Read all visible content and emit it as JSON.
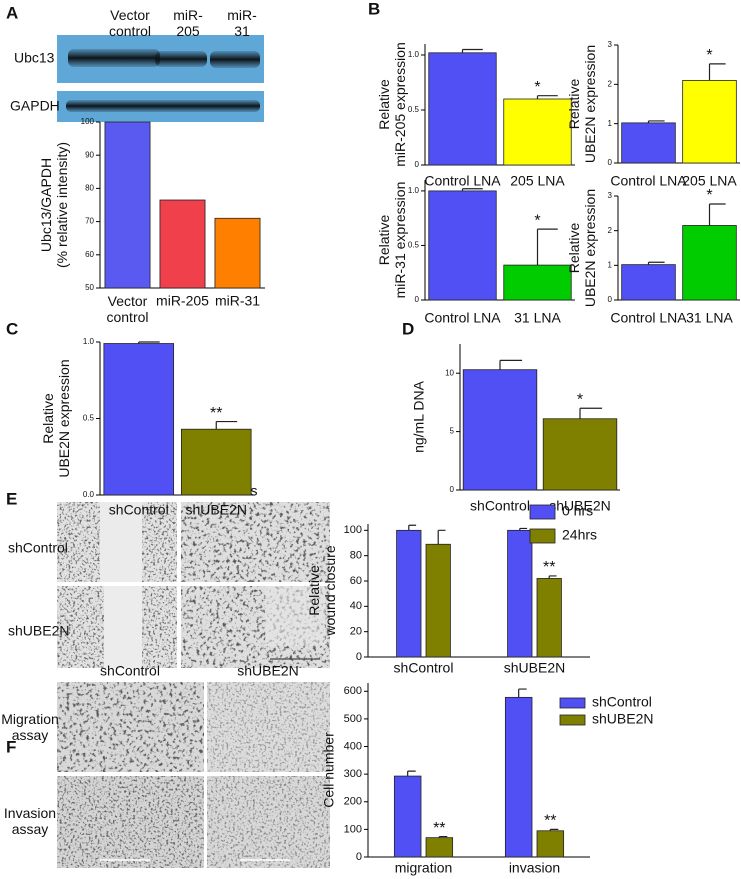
{
  "figure": {
    "panel_letters": [
      "A",
      "B",
      "C",
      "D",
      "E",
      "F"
    ],
    "blot": {
      "lanes": [
        "Vector\ncontrol",
        "miR-\n205",
        "miR-\n31"
      ],
      "rows": [
        "Ubc13",
        "GAPDH"
      ]
    },
    "wound": {
      "times": [
        "0hrs",
        "24hrs"
      ],
      "rows": [
        "shControl",
        "shUBE2N"
      ]
    },
    "transwell": {
      "columns": [
        "shControl",
        "shUBE2N"
      ],
      "rows": [
        "Migration\nassay",
        "Invasion\nassay"
      ]
    }
  },
  "chart_data": [
    {
      "type": "bar",
      "ylabel": "Ubc13/GAPDH\n(% relative intensity)",
      "categories": [
        "Vector\ncontrol",
        "miR-205",
        "miR-31"
      ],
      "values": [
        100,
        76.5,
        71
      ],
      "colors": [
        "#5a5af0",
        "#f0404c",
        "#ff8000"
      ],
      "ylim": [
        50,
        100
      ],
      "yticks": [
        50,
        60,
        70,
        80,
        90,
        100
      ]
    },
    {
      "type": "bar",
      "ylabel": "Relative\nmiR-205 expression",
      "categories": [
        "Control LNA",
        "205 LNA"
      ],
      "values": [
        1.02,
        0.6
      ],
      "errors": [
        0.03,
        0.03
      ],
      "significance": [
        null,
        "*"
      ],
      "colors": [
        "#5050f5",
        "#ffff00"
      ],
      "ylim": [
        0,
        1.1
      ],
      "yticks": [
        0,
        0.5,
        {
          "value": 1,
          "label": "1.0"
        }
      ]
    },
    {
      "type": "bar",
      "ylabel": "Relative\nUBE2N expression",
      "categories": [
        "Control LNA",
        "205 LNA"
      ],
      "values": [
        1.02,
        2.1
      ],
      "errors": [
        0.05,
        0.42
      ],
      "significance": [
        null,
        "*"
      ],
      "colors": [
        "#5050f5",
        "#ffff00"
      ],
      "ylim": [
        0,
        3
      ],
      "yticks": [
        0,
        1,
        2,
        3
      ]
    },
    {
      "type": "bar",
      "ylabel": "Relative\nmiR-31 expression",
      "categories": [
        "Control LNA",
        "31 LNA"
      ],
      "values": [
        1.0,
        0.32
      ],
      "errors": [
        0.02,
        0.33
      ],
      "significance": [
        null,
        "*"
      ],
      "colors": [
        "#5050f5",
        "#00cc00"
      ],
      "ylim": [
        0,
        1.1
      ],
      "yticks": [
        0,
        0.5,
        {
          "value": 1,
          "label": "1.0"
        }
      ]
    },
    {
      "type": "bar",
      "ylabel": "Relative\nUBE2N expression",
      "categories": [
        "Control LNA",
        "31 LNA"
      ],
      "values": [
        1.02,
        2.15
      ],
      "errors": [
        0.07,
        0.62
      ],
      "significance": [
        null,
        "*"
      ],
      "colors": [
        "#5050f5",
        "#00cc00"
      ],
      "ylim": [
        0,
        3
      ],
      "yticks": [
        0,
        1,
        2,
        3
      ]
    },
    {
      "type": "bar",
      "ylabel": "Relative\nUBE2N expression",
      "categories": [
        "shControl",
        "shUBE2N"
      ],
      "values": [
        0.99,
        0.43
      ],
      "errors": [
        0.01,
        0.05
      ],
      "significance": [
        null,
        "**"
      ],
      "colors": [
        "#5050f5",
        "#808000"
      ],
      "ylim": [
        0,
        1
      ],
      "yticks": [
        {
          "value": 0,
          "label": "0.0"
        },
        0.5,
        {
          "value": 1,
          "label": "1.0"
        }
      ]
    },
    {
      "type": "bar",
      "ylabel": "ng/mL DNA",
      "categories": [
        "shControl",
        "shUBE2N"
      ],
      "values": [
        10.3,
        6.1
      ],
      "errors": [
        0.8,
        0.9
      ],
      "significance": [
        null,
        "*"
      ],
      "colors": [
        "#5050f5",
        "#808000"
      ],
      "ylim": [
        0,
        12.5
      ],
      "yticks": [
        0,
        5,
        10
      ]
    },
    {
      "type": "grouped_bar",
      "ylabel": "Relative\nwound closure",
      "categories": [
        "shControl",
        "shUBE2N"
      ],
      "series": [
        {
          "name": "0 hrs",
          "color": "#5050f5",
          "values": [
            100,
            100
          ],
          "errors": [
            4,
            1.5
          ],
          "significance": [
            null,
            null
          ]
        },
        {
          "name": "24hrs",
          "color": "#808000",
          "values": [
            89,
            62
          ],
          "errors": [
            11,
            2
          ],
          "significance": [
            null,
            "**"
          ]
        }
      ],
      "ylim": [
        0,
        105
      ],
      "yticks": [
        0,
        20,
        40,
        60,
        80,
        100
      ]
    },
    {
      "type": "grouped_bar",
      "ylabel": "Cell number",
      "categories": [
        "migration",
        "invasion"
      ],
      "series": [
        {
          "name": "shControl",
          "color": "#5050f5",
          "values": [
            293,
            578
          ],
          "errors": [
            18,
            30
          ],
          "significance": [
            null,
            null
          ]
        },
        {
          "name": "shUBE2N",
          "color": "#808000",
          "values": [
            70,
            95
          ],
          "errors": [
            4,
            5
          ],
          "significance": [
            "**",
            "**"
          ]
        }
      ],
      "ylim": [
        0,
        630
      ],
      "yticks": [
        0,
        100,
        200,
        300,
        400,
        500,
        600
      ]
    }
  ]
}
